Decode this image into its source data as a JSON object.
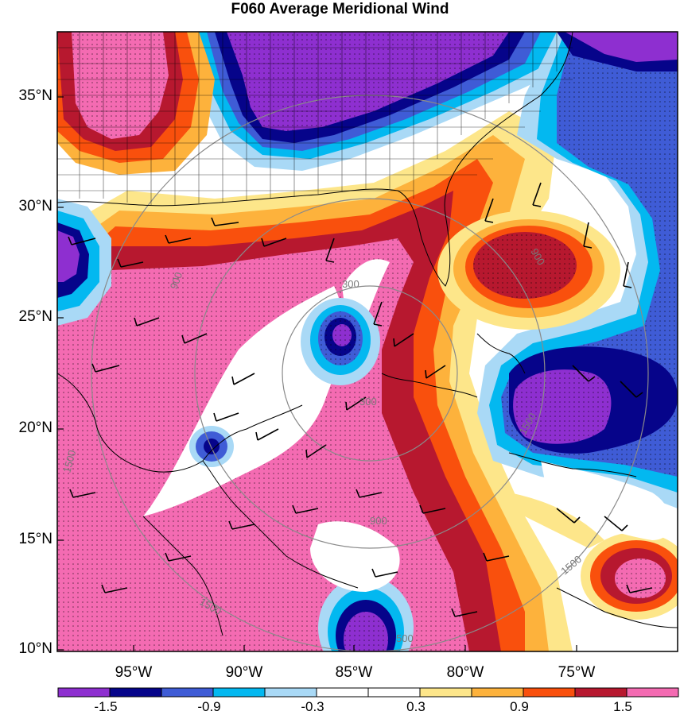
{
  "title": "F060 Average Meridional Wind",
  "lat_labels": [
    "35°N",
    "30°N",
    "25°N",
    "20°N",
    "15°N",
    "10°N"
  ],
  "lon_labels": [
    "95°W",
    "90°W",
    "85°W",
    "80°W",
    "75°W"
  ],
  "colorbar": {
    "labels": [
      "-1.5",
      "-0.9",
      "-0.3",
      "0.3",
      "0.9",
      "1.5"
    ],
    "colors": [
      "#8e2fd0",
      "#06048a",
      "#3f5cd6",
      "#03b8f0",
      "#a9d9f6",
      "#ffffff",
      "#ffffff",
      "#fde68a",
      "#fdb23c",
      "#f9500d",
      "#b7182f",
      "#f46bb2"
    ]
  },
  "range_ring_labels": [
    "300",
    "300",
    "900",
    "900",
    "900",
    "1500",
    "1500",
    "1500",
    "1500",
    "500"
  ]
}
